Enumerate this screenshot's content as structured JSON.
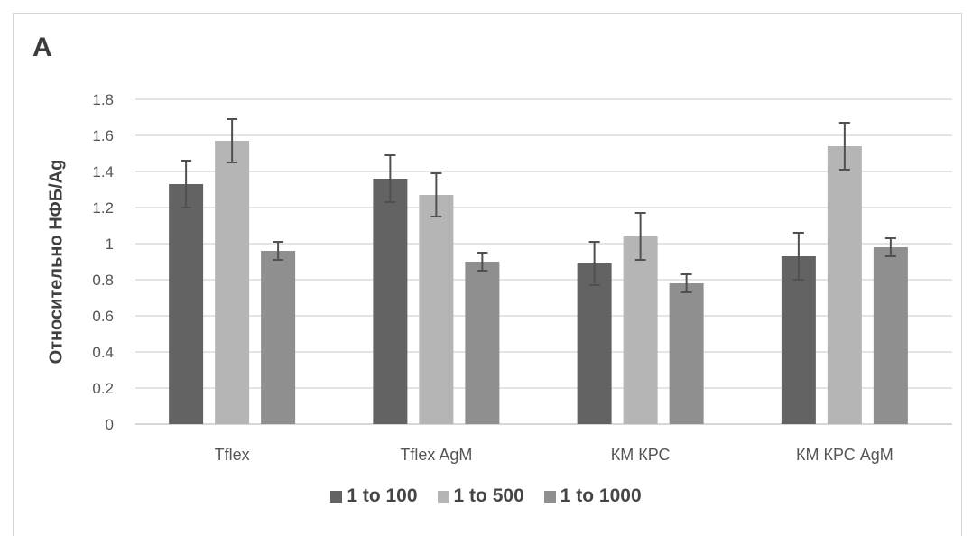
{
  "panel_label": "A",
  "chart_data": {
    "type": "bar",
    "ylabel": "Относительно НФБ/Ag",
    "xlabel": "",
    "ylim": [
      0,
      1.8
    ],
    "yticks": [
      "0",
      "0.2",
      "0.4",
      "0.6",
      "0.8",
      "1",
      "1.2",
      "1.4",
      "1.6",
      "1.8"
    ],
    "grid": true,
    "legend_position": "bottom",
    "categories": [
      "Tflex",
      "Tflex AgM",
      "КМ КРС",
      "КМ КРС AgM"
    ],
    "series": [
      {
        "name": "1 to 100",
        "color": "#636363",
        "values": [
          1.33,
          1.36,
          0.89,
          0.93
        ],
        "errors": [
          0.13,
          0.13,
          0.12,
          0.13
        ]
      },
      {
        "name": "1 to 500",
        "color": "#b5b5b5",
        "values": [
          1.57,
          1.27,
          1.04,
          1.54
        ],
        "errors": [
          0.12,
          0.12,
          0.13,
          0.13
        ]
      },
      {
        "name": "1 to 1000",
        "color": "#8f8f8f",
        "values": [
          0.96,
          0.9,
          0.78,
          0.98
        ],
        "errors": [
          0.05,
          0.05,
          0.05,
          0.05
        ]
      }
    ]
  }
}
